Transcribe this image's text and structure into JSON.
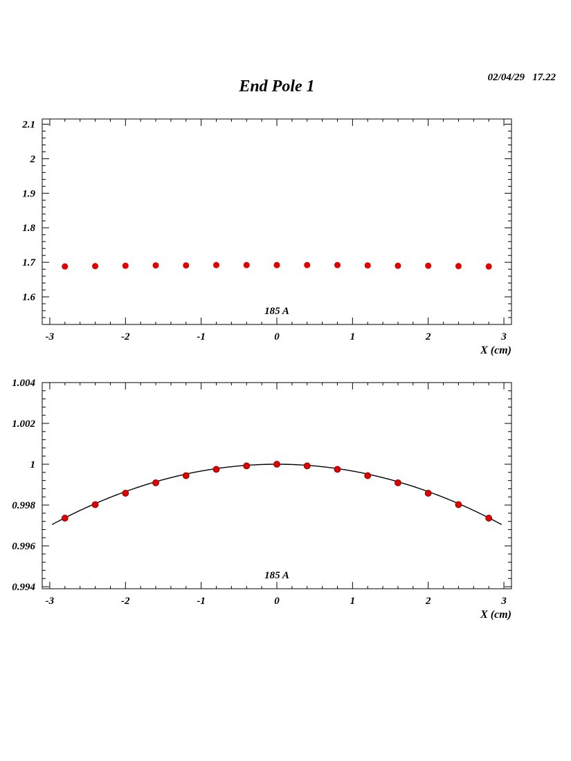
{
  "header": {
    "title": "End Pole 1",
    "timestamp": "02/04/29   17.22"
  },
  "colors": {
    "points": "#e00000",
    "fit": "#000000",
    "axes": "#000000"
  },
  "chart_data": [
    {
      "type": "scatter",
      "title": "",
      "xlabel": "X (cm)",
      "ylabel": "",
      "annotation": "185 A",
      "xlim": [
        -3.1,
        3.1
      ],
      "ylim": [
        1.52,
        2.115
      ],
      "x_ticks": [
        -3,
        -2,
        -1,
        0,
        1,
        2,
        3
      ],
      "y_ticks": [
        1.6,
        1.7,
        1.8,
        1.9,
        2.0,
        2.1
      ],
      "y_tick_labels": [
        "1.6",
        "1.7",
        "1.8",
        "1.9",
        "2",
        "2.1"
      ],
      "grid": false,
      "series": [
        {
          "x": [
            -2.8,
            -2.4,
            -2.0,
            -1.6,
            -1.2,
            -0.8,
            -0.4,
            0.0,
            0.4,
            0.8,
            1.2,
            1.6,
            2.0,
            2.4,
            2.8
          ],
          "y": [
            1.688,
            1.689,
            1.69,
            1.691,
            1.691,
            1.692,
            1.692,
            1.692,
            1.692,
            1.692,
            1.691,
            1.69,
            1.69,
            1.689,
            1.688
          ]
        }
      ]
    },
    {
      "type": "scatter",
      "title": "",
      "xlabel": "X (cm)",
      "ylabel": "",
      "annotation": "185 A",
      "xlim": [
        -3.1,
        3.1
      ],
      "ylim": [
        0.9939,
        1.004
      ],
      "x_ticks": [
        -3,
        -2,
        -1,
        0,
        1,
        2,
        3
      ],
      "y_ticks": [
        0.994,
        0.996,
        0.998,
        1.0,
        1.002,
        1.004
      ],
      "y_tick_labels": [
        "0.994",
        "0.996",
        "0.998",
        "1",
        "1.002",
        "1.004"
      ],
      "grid": false,
      "series": [
        {
          "x": [
            -2.8,
            -2.4,
            -2.0,
            -1.6,
            -1.2,
            -0.8,
            -0.4,
            0.0,
            0.4,
            0.8,
            1.2,
            1.6,
            2.0,
            2.4,
            2.8
          ],
          "y": [
            0.99736,
            0.99802,
            0.99858,
            0.99909,
            0.99944,
            0.99975,
            0.99992,
            1.0,
            0.99992,
            0.99975,
            0.99944,
            0.99909,
            0.99858,
            0.99802,
            0.99736
          ]
        }
      ],
      "fit": {
        "form": "quadratic",
        "a": 1.0,
        "b": 0.0,
        "c": -0.000335,
        "x_range": [
          -2.97,
          2.97
        ]
      }
    }
  ]
}
